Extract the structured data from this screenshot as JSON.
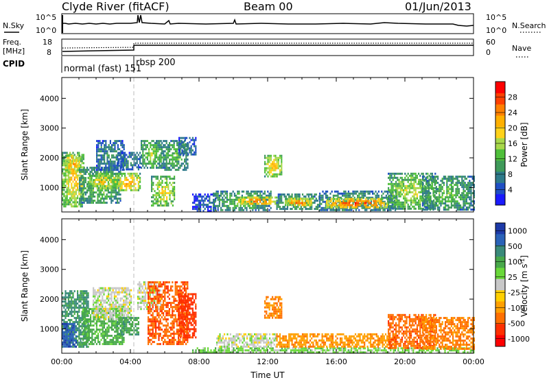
{
  "header": {
    "station": "Clyde River (fitACF)",
    "beam": "Beam 00",
    "date": "01/Jun/2013"
  },
  "info_panels": {
    "nsky_label": "N.Sky",
    "nsky_ticks": [
      "10^5",
      "10^0"
    ],
    "nsearch_label": "N.Search",
    "nsearch_ticks": [
      "10^5",
      "10^0"
    ],
    "freq_label": "Freq.",
    "freq_unit": "[MHz]",
    "freq_ticks": [
      "18",
      "8"
    ],
    "nave_label": "Nave",
    "nave_ticks": [
      "60",
      "0"
    ],
    "cpid_label": "CPID",
    "cpid_modes": [
      {
        "name": "normal (fast) 151",
        "start_hour": 0,
        "end_hour": 4.2
      },
      {
        "name": "rbsp 200",
        "start_hour": 4.2,
        "end_hour": 24
      }
    ]
  },
  "colors": {
    "power_scale": [
      "#1a1aff",
      "#1f4fc4",
      "#2e7a8a",
      "#3f9a5a",
      "#4fbf3a",
      "#a8d84a",
      "#ffd21a",
      "#ffb000",
      "#ff8000",
      "#ff4000",
      "#ff0000"
    ],
    "velocity_scale": [
      "#1d3aa8",
      "#2a62b8",
      "#3a8a7a",
      "#48a84a",
      "#6ad83a",
      "#c8c8c8",
      "#ffd000",
      "#ffa000",
      "#ff7000",
      "#ff3000",
      "#ff0000"
    ]
  },
  "chart_data": [
    {
      "type": "heatmap",
      "title": "Power",
      "xlabel": "",
      "ylabel": "Slant Range [km]",
      "x_ticks": [
        "00:00",
        "04:00",
        "08:00",
        "12:00",
        "16:00",
        "20:00",
        "00:00"
      ],
      "xlim_hours": [
        0,
        24
      ],
      "y_ticks": [
        1000,
        2000,
        3000,
        4000
      ],
      "ylim": [
        180,
        4700
      ],
      "colorbar": {
        "label": "Power [dB]",
        "ticks": [
          4,
          8,
          12,
          16,
          20,
          24,
          28
        ],
        "range": [
          0,
          32
        ]
      },
      "blobs": [
        {
          "t0": 0.0,
          "t1": 1.3,
          "r0": 400,
          "r1": 2200,
          "v": 22
        },
        {
          "t0": 0.2,
          "t1": 1.0,
          "r0": 1500,
          "r1": 2100,
          "v": 26
        },
        {
          "t0": 1.0,
          "t1": 3.4,
          "r0": 500,
          "r1": 1700,
          "v": 15
        },
        {
          "t0": 1.5,
          "t1": 3.3,
          "r0": 1000,
          "r1": 1500,
          "v": 22
        },
        {
          "t0": 2.0,
          "t1": 3.6,
          "r0": 1600,
          "r1": 2600,
          "v": 10
        },
        {
          "t0": 3.2,
          "t1": 4.6,
          "r0": 900,
          "r1": 1500,
          "v": 24
        },
        {
          "t0": 3.2,
          "t1": 4.6,
          "r0": 1600,
          "r1": 2200,
          "v": 9
        },
        {
          "t0": 4.6,
          "t1": 5.8,
          "r0": 1700,
          "r1": 2600,
          "v": 16
        },
        {
          "t0": 5.2,
          "t1": 6.6,
          "r0": 400,
          "r1": 1400,
          "v": 20
        },
        {
          "t0": 5.8,
          "t1": 7.3,
          "r0": 1600,
          "r1": 2600,
          "v": 14
        },
        {
          "t0": 6.8,
          "t1": 7.8,
          "r0": 2100,
          "r1": 2700,
          "v": 8
        },
        {
          "t0": 7.6,
          "t1": 9.0,
          "r0": 200,
          "r1": 800,
          "v": 6
        },
        {
          "t0": 8.8,
          "t1": 12.2,
          "r0": 250,
          "r1": 900,
          "v": 14
        },
        {
          "t0": 10.2,
          "t1": 12.5,
          "r0": 450,
          "r1": 700,
          "v": 28
        },
        {
          "t0": 11.8,
          "t1": 12.8,
          "r0": 1400,
          "r1": 2100,
          "v": 22
        },
        {
          "t0": 12.5,
          "t1": 15.0,
          "r0": 250,
          "r1": 800,
          "v": 14
        },
        {
          "t0": 13.0,
          "t1": 14.5,
          "r0": 400,
          "r1": 650,
          "v": 27
        },
        {
          "t0": 15.0,
          "t1": 19.5,
          "r0": 230,
          "r1": 900,
          "v": 12
        },
        {
          "t0": 15.4,
          "t1": 19.0,
          "r0": 350,
          "r1": 650,
          "v": 30
        },
        {
          "t0": 19.0,
          "t1": 21.8,
          "r0": 300,
          "r1": 1500,
          "v": 18
        },
        {
          "t0": 21.0,
          "t1": 24.0,
          "r0": 230,
          "r1": 1400,
          "v": 14
        }
      ]
    },
    {
      "type": "heatmap",
      "title": "Velocity",
      "xlabel": "Time UT",
      "ylabel": "Slant Range [km]",
      "x_ticks": [
        "00:00",
        "04:00",
        "08:00",
        "12:00",
        "16:00",
        "20:00",
        "00:00"
      ],
      "xlim_hours": [
        0,
        24
      ],
      "y_ticks": [
        1000,
        2000,
        3000,
        4000
      ],
      "ylim": [
        180,
        4700
      ],
      "colorbar": {
        "label": "Velocity [m s^-1]",
        "ticks": [
          "1000",
          "500",
          "100",
          "25",
          "-25",
          "-100",
          "-500",
          "-1000"
        ]
      },
      "blobs": [
        {
          "t0": 0.0,
          "t1": 1.5,
          "r0": 400,
          "r1": 2300,
          "v": 300
        },
        {
          "t0": 0.0,
          "t1": 0.8,
          "r0": 400,
          "r1": 1200,
          "v": 900
        },
        {
          "t0": 1.2,
          "t1": 3.6,
          "r0": 500,
          "r1": 1700,
          "v": 150
        },
        {
          "t0": 1.8,
          "t1": 4.0,
          "r0": 1300,
          "r1": 2400,
          "v": 0
        },
        {
          "t0": 3.2,
          "t1": 4.5,
          "r0": 800,
          "r1": 1400,
          "v": 200
        },
        {
          "t0": 4.4,
          "t1": 5.8,
          "r0": 1700,
          "r1": 2600,
          "v": 0
        },
        {
          "t0": 5.0,
          "t1": 7.3,
          "r0": 500,
          "r1": 2600,
          "v": -450
        },
        {
          "t0": 6.8,
          "t1": 7.8,
          "r0": 700,
          "r1": 2200,
          "v": -700
        },
        {
          "t0": 7.6,
          "t1": 24.0,
          "r0": 200,
          "r1": 380,
          "v": 60
        },
        {
          "t0": 9.0,
          "t1": 12.5,
          "r0": 380,
          "r1": 850,
          "v": 0
        },
        {
          "t0": 11.8,
          "t1": 12.8,
          "r0": 1400,
          "r1": 2100,
          "v": -250
        },
        {
          "t0": 12.5,
          "t1": 19.5,
          "r0": 380,
          "r1": 850,
          "v": -200
        },
        {
          "t0": 19.0,
          "t1": 21.8,
          "r0": 350,
          "r1": 1500,
          "v": -400
        },
        {
          "t0": 21.0,
          "t1": 24.0,
          "r0": 350,
          "r1": 1400,
          "v": -300
        }
      ]
    }
  ]
}
